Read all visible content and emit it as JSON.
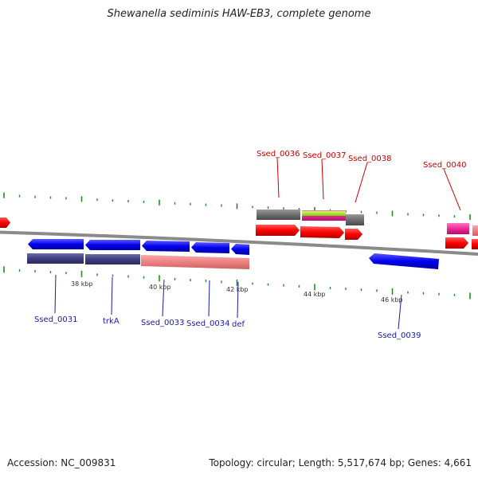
{
  "title": "Shewanella sediminis HAW-EB3, complete genome",
  "footer": {
    "accession": "Accession: NC_009831",
    "topology": "Topology: circular; Length: 5,517,674 bp; Genes: 4,661"
  },
  "colors": {
    "forward_cds": "#ff0000",
    "reverse_cds": "#0000ee",
    "forward_label": "#cc0000",
    "reverse_label": "#1a1aaa",
    "backbone": "#808080",
    "tick": "#228b22"
  },
  "scale_labels": [
    "38 kbp",
    "40 kbp",
    "42 kbp",
    "44 kbp",
    "46 kbp"
  ],
  "gene_labels": {
    "forward": [
      "Ssed_0036",
      "Ssed_0037",
      "Ssed_0038",
      "Ssed_0040"
    ],
    "reverse": [
      "Ssed_0031",
      "trkA",
      "Ssed_0033",
      "Ssed_0034",
      "def",
      "Ssed_0039"
    ]
  }
}
